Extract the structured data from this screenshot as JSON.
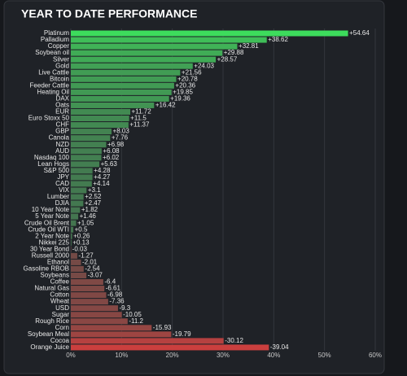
{
  "chart_data": {
    "type": "hbar",
    "title": "YEAR TO DATE PERFORMANCE",
    "categories": [
      "Platinum",
      "Palladium",
      "Copper",
      "Soybean oil",
      "Silver",
      "Gold",
      "Live Cattle",
      "Bitcoin",
      "Feeder Cattle",
      "Heating Oil",
      "DAX",
      "Oats",
      "EUR",
      "Euro Stoxx 50",
      "CHF",
      "GBP",
      "Canola",
      "NZD",
      "AUD",
      "Nasdaq 100",
      "Lean Hogs",
      "S&P 500",
      "JPY",
      "CAD",
      "VIX",
      "Lumber",
      "DJIA",
      "10 Year Note",
      "5 Year Note",
      "Crude Oil Brent",
      "Crude Oil WTI",
      "2 Year Note",
      "Nikkei 225",
      "30 Year Bond",
      "Russell 2000",
      "Ethanol",
      "Gasoline RBOB",
      "Soybeans",
      "Coffee",
      "Natural Gas",
      "Cotton",
      "Wheat",
      "USD",
      "Sugar",
      "Rough Rice",
      "Corn",
      "Soybean Meal",
      "Cocoa",
      "Orange Juice"
    ],
    "values": [
      54.64,
      38.62,
      32.81,
      29.88,
      28.57,
      24.03,
      21.56,
      20.78,
      20.36,
      19.85,
      19.36,
      16.42,
      11.72,
      11.5,
      11.37,
      8.03,
      7.76,
      6.98,
      6.08,
      6.02,
      5.63,
      4.28,
      4.27,
      4.14,
      3.1,
      2.52,
      2.47,
      1.82,
      1.46,
      1.05,
      0.5,
      0.26,
      0.13,
      -0.03,
      -1.27,
      -2.01,
      -2.54,
      -3.07,
      -6.4,
      -6.61,
      -6.98,
      -7.36,
      -9.3,
      -10.05,
      -11.2,
      -15.93,
      -19.79,
      -30.12,
      -39.04
    ],
    "value_labels": [
      "+54.64",
      "+38.62",
      "+32.81",
      "+29.88",
      "+28.57",
      "+24.03",
      "+21.56",
      "+20.78",
      "+20.36",
      "+19.85",
      "+19.36",
      "+16.42",
      "+11.72",
      "+11.5",
      "+11.37",
      "+8.03",
      "+7.76",
      "+6.98",
      "+6.08",
      "+6.02",
      "+5.63",
      "+4.28",
      "+4.27",
      "+4.14",
      "+3.1",
      "+2.52",
      "+2.47",
      "+1.82",
      "+1.46",
      "+1.05",
      "+0.5",
      "+0.26",
      "+0.13",
      "-0.03",
      "-1.27",
      "-2.01",
      "-2.54",
      "-3.07",
      "-6.4",
      "-6.61",
      "-6.98",
      "-7.36",
      "-9.3",
      "-10.05",
      "-11.2",
      "-15.93",
      "-19.79",
      "-30.12",
      "-39.04"
    ],
    "positive_color": "#3ddc5c",
    "negative_color": "#ee3a3a",
    "xlim": [
      0,
      60
    ],
    "xticks": [
      {
        "value": 0,
        "label": "0%"
      },
      {
        "value": 10,
        "label": "10%"
      },
      {
        "value": 20,
        "label": "20%"
      },
      {
        "value": 30,
        "label": "30%"
      },
      {
        "value": 40,
        "label": "40%"
      },
      {
        "value": 50,
        "label": "50%"
      },
      {
        "value": 60,
        "label": "60%"
      }
    ],
    "grid": true
  }
}
